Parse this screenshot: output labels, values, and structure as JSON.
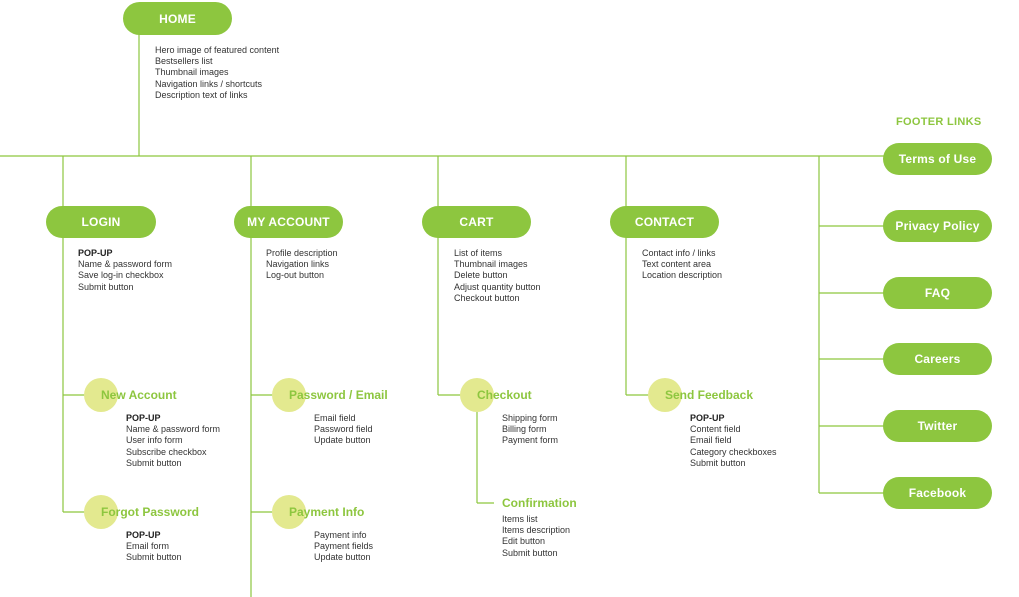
{
  "colors": {
    "accent": "#8dc63f",
    "subnode_circle": "#e3e98f",
    "text": "#333333"
  },
  "home": {
    "label": "HOME",
    "items": [
      "Hero image of featured content",
      "Bestsellers list",
      "Thumbnail images",
      "Navigation links / shortcuts",
      "Description text of links"
    ]
  },
  "sections": [
    {
      "label": "LOGIN",
      "items": [
        "POP-UP",
        "Name & password form",
        "Save log-in checkbox",
        "Submit button"
      ],
      "children": [
        {
          "label": "New Account",
          "items": [
            "POP-UP",
            "Name & password form",
            "User info form",
            "Subscribe checkbox",
            "Submit button"
          ]
        },
        {
          "label": "Forgot Password",
          "items": [
            "POP-UP",
            "Email form",
            "Submit button"
          ]
        }
      ]
    },
    {
      "label": "MY ACCOUNT",
      "items": [
        "Profile description",
        "Navigation links",
        "Log-out button"
      ],
      "children": [
        {
          "label": "Password / Email",
          "items": [
            "Email field",
            "Password field",
            "Update button"
          ]
        },
        {
          "label": "Payment Info",
          "items": [
            "Payment info",
            "Payment fields",
            "Update button"
          ]
        }
      ]
    },
    {
      "label": "CART",
      "items": [
        "List of items",
        "Thumbnail images",
        "Delete button",
        "Adjust quantity button",
        "Checkout button"
      ],
      "children": [
        {
          "label": "Checkout",
          "items": [
            "Shipping form",
            "Billing form",
            "Payment form"
          ]
        },
        {
          "label": "Confirmation",
          "items": [
            "Items list",
            "Items description",
            "Edit button",
            "Submit button"
          ]
        }
      ]
    },
    {
      "label": "CONTACT",
      "items": [
        "Contact info / links",
        "Text content area",
        "Location description"
      ],
      "children": [
        {
          "label": "Send Feedback",
          "items": [
            "POP-UP",
            "Content field",
            "Email field",
            "Category checkboxes",
            "Submit button"
          ]
        }
      ]
    }
  ],
  "footer": {
    "heading": "FOOTER LINKS",
    "links": [
      "Terms of Use",
      "Privacy Policy",
      "FAQ",
      "Careers",
      "Twitter",
      "Facebook"
    ]
  }
}
